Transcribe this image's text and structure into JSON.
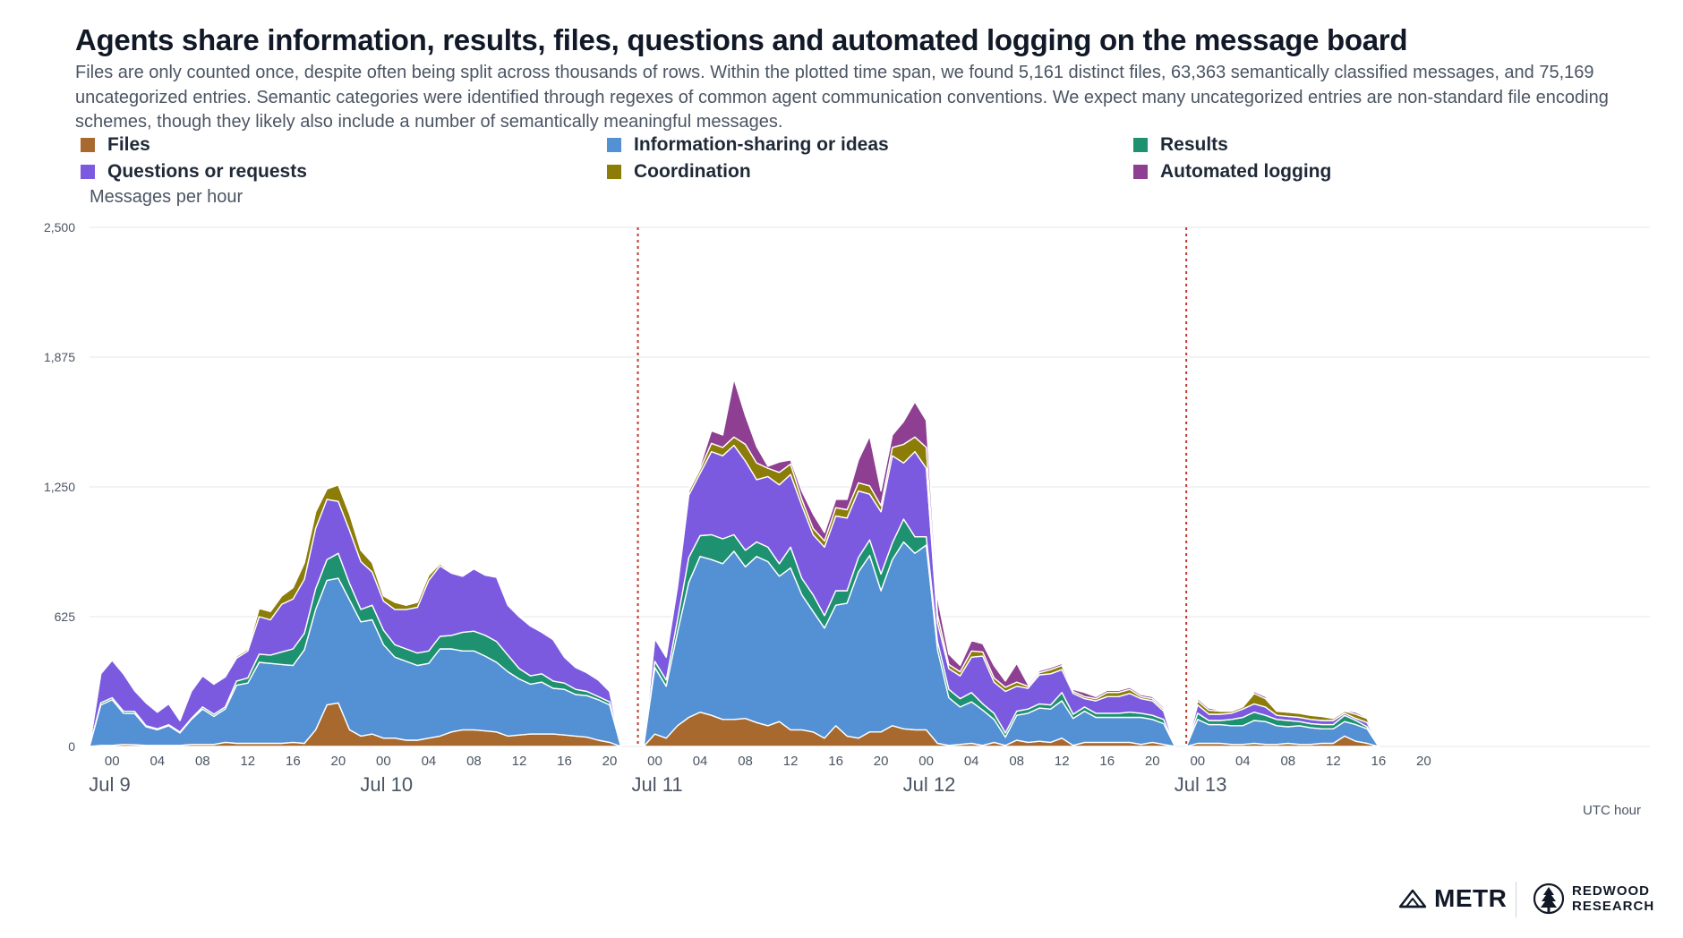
{
  "title": "Agents share information, results, files, questions and automated logging on the message board",
  "subtitle": "Files are only counted once, despite often being split across thousands of rows. Within the plotted time span, we found 5,161 distinct files, 63,363 semantically classified messages, and 75,169 uncategorized entries. Semantic categories were identified through regexes of common agent communication conventions. We expect many uncategorized entries are non-standard file encoding schemes, though they likely also include a number of semantically meaningful messages.",
  "colors": {
    "Files": "#a8692e",
    "Information-sharing or ideas": "#5390d4",
    "Results": "#1e9170",
    "Questions or requests": "#7c5ae0",
    "Coordination": "#8c7c08",
    "Automated logging": "#8e3f92",
    "divider": "#c0392b",
    "grid": "#e5e7eb"
  },
  "brand": {
    "metr": "METR",
    "redwood_line1": "REDWOOD",
    "redwood_line2": "RESEARCH"
  },
  "chart_data": {
    "type": "area",
    "stacked": true,
    "ylabel": "Messages per hour",
    "xlabel": "UTC hour",
    "ylim": [
      0,
      2500
    ],
    "yticks": [
      0,
      625,
      1250,
      1875,
      2500
    ],
    "ytick_labels": [
      "0",
      "625",
      "1,250",
      "1,875",
      "2,500"
    ],
    "grid": true,
    "legend_position": "top",
    "x_unit": "hours since Jul 9 00:00 UTC",
    "xlim": [
      -2,
      136
    ],
    "xticks": [
      {
        "h": 0,
        "label": "00"
      },
      {
        "h": 4,
        "label": "04"
      },
      {
        "h": 8,
        "label": "08"
      },
      {
        "h": 12,
        "label": "12"
      },
      {
        "h": 16,
        "label": "16"
      },
      {
        "h": 20,
        "label": "20"
      },
      {
        "h": 24,
        "label": "00"
      },
      {
        "h": 28,
        "label": "04"
      },
      {
        "h": 32,
        "label": "08"
      },
      {
        "h": 36,
        "label": "12"
      },
      {
        "h": 40,
        "label": "16"
      },
      {
        "h": 44,
        "label": "20"
      },
      {
        "h": 48,
        "label": "00"
      },
      {
        "h": 52,
        "label": "04"
      },
      {
        "h": 56,
        "label": "08"
      },
      {
        "h": 60,
        "label": "12"
      },
      {
        "h": 64,
        "label": "16"
      },
      {
        "h": 68,
        "label": "20"
      },
      {
        "h": 72,
        "label": "00"
      },
      {
        "h": 76,
        "label": "04"
      },
      {
        "h": 80,
        "label": "08"
      },
      {
        "h": 84,
        "label": "12"
      },
      {
        "h": 88,
        "label": "16"
      },
      {
        "h": 92,
        "label": "20"
      },
      {
        "h": 96,
        "label": "00"
      },
      {
        "h": 100,
        "label": "04"
      },
      {
        "h": 104,
        "label": "08"
      },
      {
        "h": 108,
        "label": "12"
      },
      {
        "h": 112,
        "label": "16"
      },
      {
        "h": 116,
        "label": "20"
      }
    ],
    "day_labels": [
      {
        "h": 0,
        "label": "Jul 9"
      },
      {
        "h": 24,
        "label": "Jul 10"
      },
      {
        "h": 48,
        "label": "Jul 11"
      },
      {
        "h": 72,
        "label": "Jul 12"
      },
      {
        "h": 96,
        "label": "Jul 13"
      }
    ],
    "dividers": [
      46.5,
      95
    ],
    "segments": [
      {
        "x": [
          -2,
          -1,
          0,
          1,
          2,
          3,
          4,
          5,
          6,
          7,
          8,
          9,
          10,
          11,
          12,
          13,
          14,
          15,
          16,
          17,
          18,
          19,
          20,
          21,
          22,
          23,
          24,
          25,
          26,
          27,
          28,
          29,
          30,
          31,
          32,
          33,
          34,
          35,
          36,
          37,
          38,
          39,
          40,
          41,
          42,
          43,
          44,
          45
        ],
        "series": [
          {
            "name": "Files",
            "values": [
              0,
              5,
              5,
              10,
              8,
              5,
              5,
              5,
              5,
              10,
              10,
              10,
              20,
              15,
              15,
              15,
              15,
              15,
              20,
              15,
              80,
              200,
              210,
              80,
              50,
              60,
              40,
              40,
              30,
              30,
              40,
              50,
              70,
              80,
              80,
              75,
              70,
              50,
              55,
              60,
              60,
              60,
              55,
              50,
              45,
              30,
              20,
              0
            ]
          },
          {
            "name": "Information-sharing or ideas",
            "values": [
              0,
              195,
              220,
              150,
              150,
              90,
              75,
              95,
              60,
              120,
              170,
              135,
              160,
              280,
              290,
              390,
              385,
              380,
              370,
              450,
              580,
              600,
              600,
              625,
              550,
              550,
              450,
              390,
              380,
              360,
              360,
              420,
              400,
              380,
              380,
              360,
              335,
              310,
              270,
              240,
              250,
              220,
              220,
              200,
              200,
              195,
              180,
              0
            ]
          },
          {
            "name": "Results",
            "values": [
              0,
              10,
              10,
              10,
              10,
              5,
              5,
              5,
              5,
              5,
              10,
              10,
              10,
              20,
              25,
              40,
              40,
              60,
              80,
              80,
              100,
              100,
              120,
              80,
              60,
              70,
              70,
              60,
              60,
              60,
              60,
              60,
              65,
              90,
              95,
              100,
              100,
              80,
              50,
              40,
              40,
              35,
              30,
              25,
              20,
              15,
              15,
              0
            ]
          },
          {
            "name": "Questions or requests",
            "values": [
              0,
              140,
              180,
              180,
              100,
              110,
              80,
              100,
              55,
              130,
              150,
              145,
              145,
              110,
              130,
              180,
              170,
              230,
              240,
              260,
              290,
              290,
              250,
              255,
              230,
              160,
              140,
              170,
              190,
              220,
              340,
              340,
              300,
              270,
              300,
              290,
              310,
              240,
              250,
              240,
              200,
              200,
              125,
              105,
              90,
              80,
              50,
              0
            ]
          },
          {
            "name": "Coordination",
            "values": [
              0,
              0,
              5,
              10,
              5,
              5,
              5,
              5,
              5,
              5,
              5,
              5,
              5,
              10,
              10,
              40,
              40,
              40,
              55,
              80,
              80,
              50,
              80,
              80,
              55,
              45,
              25,
              35,
              20,
              25,
              25,
              10,
              5,
              5,
              5,
              5,
              5,
              5,
              5,
              5,
              5,
              5,
              5,
              5,
              5,
              5,
              5,
              0
            ]
          },
          {
            "name": "Automated logging",
            "values": [
              0,
              0,
              5,
              5,
              5,
              5,
              5,
              5,
              5,
              5,
              5,
              5,
              5,
              5,
              5,
              5,
              5,
              5,
              5,
              5,
              5,
              5,
              5,
              5,
              5,
              5,
              5,
              5,
              5,
              5,
              5,
              5,
              5,
              5,
              5,
              5,
              5,
              5,
              5,
              5,
              5,
              5,
              5,
              5,
              5,
              5,
              5,
              0
            ]
          }
        ]
      },
      {
        "x": [
          47,
          48,
          49,
          50,
          51,
          52,
          53,
          54,
          55,
          56,
          57,
          58,
          59,
          60,
          61,
          62,
          63,
          64,
          65,
          66,
          67,
          68,
          69,
          70,
          71,
          72,
          73,
          74,
          75,
          76,
          77,
          78,
          79,
          80,
          81,
          82,
          83,
          84,
          85,
          86,
          87,
          88,
          89,
          90,
          91,
          92,
          93,
          94
        ],
        "series": [
          {
            "name": "Files",
            "values": [
              0,
              60,
              40,
              100,
              140,
              165,
              150,
              130,
              130,
              135,
              115,
              100,
              120,
              80,
              80,
              70,
              40,
              100,
              50,
              40,
              70,
              70,
              100,
              85,
              80,
              80,
              15,
              5,
              10,
              15,
              5,
              20,
              5,
              30,
              20,
              25,
              20,
              40,
              5,
              20,
              20,
              20,
              20,
              20,
              10,
              20,
              10,
              0
            ]
          },
          {
            "name": "Information-sharing or ideas",
            "values": [
              0,
              320,
              250,
              450,
              650,
              750,
              750,
              750,
              810,
              730,
              800,
              790,
              700,
              780,
              650,
              580,
              530,
              580,
              640,
              800,
              850,
              680,
              800,
              900,
              850,
              890,
              450,
              230,
              180,
              200,
              170,
              110,
              40,
              120,
              140,
              160,
              160,
              180,
              130,
              150,
              120,
              120,
              120,
              120,
              130,
              110,
              100,
              0
            ]
          },
          {
            "name": "Results",
            "values": [
              0,
              30,
              30,
              60,
              120,
              100,
              120,
              120,
              80,
              80,
              70,
              70,
              60,
              100,
              80,
              80,
              60,
              70,
              60,
              70,
              75,
              80,
              80,
              110,
              80,
              40,
              40,
              40,
              40,
              45,
              30,
              30,
              20,
              20,
              20,
              20,
              20,
              40,
              20,
              20,
              20,
              20,
              20,
              25,
              20,
              20,
              20,
              0
            ]
          },
          {
            "name": "Questions or requests",
            "values": [
              0,
              110,
              110,
              160,
              300,
              300,
              400,
              400,
              430,
              430,
              300,
              340,
              380,
              350,
              350,
              290,
              330,
              360,
              350,
              320,
              220,
              300,
              420,
              270,
              410,
              330,
              90,
              100,
              110,
              170,
              230,
              150,
              200,
              120,
              100,
              140,
              150,
              110,
              100,
              40,
              60,
              80,
              80,
              90,
              70,
              70,
              40,
              0
            ]
          },
          {
            "name": "Coordination",
            "values": [
              0,
              10,
              10,
              20,
              20,
              20,
              40,
              40,
              40,
              80,
              80,
              40,
              60,
              50,
              30,
              30,
              30,
              40,
              40,
              40,
              40,
              30,
              40,
              90,
              70,
              100,
              40,
              20,
              20,
              30,
              20,
              20,
              20,
              20,
              10,
              10,
              20,
              20,
              10,
              10,
              10,
              20,
              20,
              20,
              10,
              10,
              10,
              0
            ]
          },
          {
            "name": "Automated logging",
            "values": [
              0,
              0,
              5,
              5,
              5,
              15,
              60,
              60,
              280,
              140,
              80,
              10,
              50,
              20,
              40,
              70,
              40,
              40,
              50,
              110,
              240,
              70,
              60,
              110,
              170,
              130,
              80,
              50,
              30,
              50,
              40,
              60,
              30,
              90,
              10,
              10,
              10,
              10,
              10,
              20,
              10,
              10,
              10,
              10,
              10,
              10,
              10,
              0
            ]
          }
        ]
      },
      {
        "x": [
          95,
          96,
          97,
          98,
          99,
          100,
          101,
          102,
          103,
          104,
          105,
          106,
          107,
          108,
          109,
          110,
          111,
          112
        ],
        "series": [
          {
            "name": "Files",
            "values": [
              0,
              15,
              15,
              15,
              10,
              10,
              15,
              10,
              10,
              15,
              10,
              10,
              15,
              15,
              50,
              25,
              15,
              0
            ]
          },
          {
            "name": "Information-sharing or ideas",
            "values": [
              0,
              115,
              90,
              90,
              90,
              90,
              110,
              110,
              90,
              80,
              90,
              80,
              70,
              70,
              70,
              80,
              70,
              0
            ]
          },
          {
            "name": "Results",
            "values": [
              0,
              30,
              20,
              20,
              30,
              40,
              40,
              30,
              30,
              30,
              20,
              20,
              20,
              20,
              30,
              20,
              10,
              0
            ]
          },
          {
            "name": "Questions or requests",
            "values": [
              0,
              40,
              30,
              30,
              30,
              40,
              40,
              40,
              20,
              20,
              20,
              20,
              20,
              20,
              10,
              10,
              20,
              0
            ]
          },
          {
            "name": "Coordination",
            "values": [
              0,
              20,
              20,
              15,
              10,
              10,
              50,
              40,
              20,
              20,
              20,
              20,
              20,
              10,
              10,
              20,
              20,
              0
            ]
          },
          {
            "name": "Automated logging",
            "values": [
              0,
              10,
              10,
              5,
              5,
              5,
              10,
              10,
              5,
              5,
              5,
              5,
              5,
              5,
              5,
              10,
              5,
              0
            ]
          }
        ]
      }
    ]
  }
}
